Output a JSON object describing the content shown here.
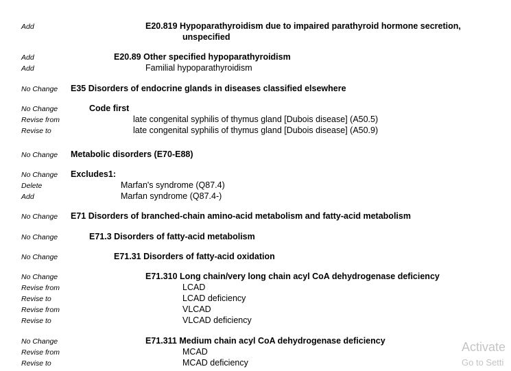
{
  "rows": [
    {
      "action": "Add",
      "text": "E20.819 Hypoparathyroidism due to impaired parathyroid hormone secretion,",
      "bold": true
    },
    {
      "action": "",
      "text": "unspecified",
      "bold": true
    },
    {
      "action": "Add",
      "text": "E20.89 Other specified hypoparathyroidism",
      "bold": true
    },
    {
      "action": "Add",
      "text": "Familial hypoparathyroidism",
      "bold": false
    },
    {
      "action": "No Change",
      "text": "E35 Disorders of endocrine glands in diseases classified elsewhere",
      "bold": true
    },
    {
      "action": "No Change",
      "text": "Code first",
      "bold": true
    },
    {
      "action": "Revise from",
      "text": "late congenital syphilis of thymus gland [Dubois disease] (A50.5)",
      "bold": false
    },
    {
      "action": "Revise to",
      "text": "late congenital syphilis of thymus gland [Dubois disease] (A50.9)",
      "bold": false
    },
    {
      "action": "No Change",
      "text": "Metabolic disorders (E70-E88)",
      "bold": true
    },
    {
      "action": "No Change",
      "text": "Excludes1:",
      "bold": true
    },
    {
      "action": "Delete",
      "text": "Marfan's syndrome (Q87.4)",
      "bold": false
    },
    {
      "action": "Add",
      "text": "Marfan syndrome (Q87.4-)",
      "bold": false
    },
    {
      "action": "No Change",
      "text": "E71 Disorders of branched-chain amino-acid metabolism and fatty-acid metabolism",
      "bold": true
    },
    {
      "action": "No Change",
      "text": "E71.3 Disorders of fatty-acid metabolism",
      "bold": true
    },
    {
      "action": "No Change",
      "text": "E71.31 Disorders of fatty-acid oxidation",
      "bold": true
    },
    {
      "action": "No Change",
      "text": "E71.310 Long chain/very long chain acyl CoA dehydrogenase deficiency",
      "bold": true
    },
    {
      "action": "Revise from",
      "text": "LCAD",
      "bold": false
    },
    {
      "action": "Revise to",
      "text": "LCAD deficiency",
      "bold": false
    },
    {
      "action": "Revise from",
      "text": "VLCAD",
      "bold": false
    },
    {
      "action": "Revise to",
      "text": "VLCAD deficiency",
      "bold": false
    },
    {
      "action": "No Change",
      "text": "E71.311 Medium chain acyl CoA dehydrogenase deficiency",
      "bold": true
    },
    {
      "action": "Revise from",
      "text": "MCAD",
      "bold": false
    },
    {
      "action": "Revise to",
      "text": "MCAD deficiency",
      "bold": false
    }
  ],
  "watermark": {
    "line1": "Activate",
    "line2": "Go to Setti"
  }
}
